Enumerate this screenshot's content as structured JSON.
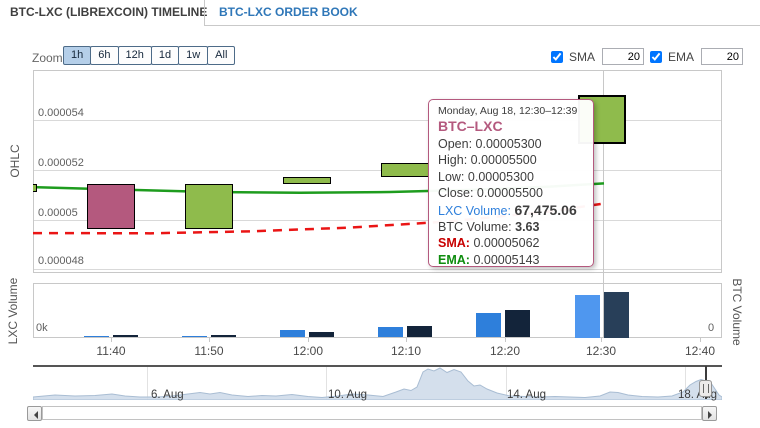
{
  "tabs": [
    {
      "label": "BTC-LXC (LIBREXCOIN) TIMELINE",
      "active": true
    },
    {
      "label": "BTC-LXC ORDER BOOK",
      "active": false
    }
  ],
  "toolbar": {
    "zoom_label": "Zoom",
    "zoom_buttons": [
      "1h",
      "6h",
      "12h",
      "1d",
      "1w",
      "All"
    ],
    "selected_zoom": "1h",
    "sma_label": "SMA",
    "sma_value": "20",
    "sma_checked": true,
    "ema_label": "EMA",
    "ema_value": "20",
    "ema_checked": true
  },
  "ohlc_pane": {
    "axis_title": "OHLC",
    "y_ticks": [
      "0.000054",
      "0.000052",
      "0.00005",
      "0.000048"
    ]
  },
  "volume_pane": {
    "left_axis_title": "LXC Volume",
    "right_axis_title": "BTC Volume",
    "left_zero_label": "0k",
    "right_zero_label": "0"
  },
  "x_axis_labels": [
    "11:40",
    "11:50",
    "12:00",
    "12:10",
    "12:20",
    "12:30",
    "12:40"
  ],
  "tooltip": {
    "date": "Monday, Aug 18, 12:30–12:39",
    "series_name": "BTC–LXC",
    "rows": [
      {
        "label": "Open:",
        "value": "0.00005300"
      },
      {
        "label": "High:",
        "value": "0.00005500"
      },
      {
        "label": "Low:",
        "value": "0.00005300"
      },
      {
        "label": "Close:",
        "value": "0.00005500"
      },
      {
        "label": "LXC Volume:",
        "value": "67,475.06",
        "label_color": "#2e7fdb",
        "value_bold": true,
        "value_size": "14px"
      },
      {
        "label": "BTC Volume:",
        "value": "3.63",
        "value_bold": true
      },
      {
        "label": "SMA:",
        "value": "0.00005062",
        "label_color": "#c80000",
        "label_bold": true
      },
      {
        "label": "EMA:",
        "value": "0.00005143",
        "label_color": "#0e8c0e",
        "label_bold": true
      }
    ]
  },
  "navigator": {
    "date_labels": [
      "6. Aug",
      "10. Aug",
      "14. Aug",
      "18. Aug"
    ]
  },
  "colors": {
    "up_candle": "#8fbb4c",
    "down_candle": "#b4597e",
    "ema_line": "#1e9c1e",
    "sma_line": "#ea1515",
    "lxc_bar": "#2e7fdb",
    "btc_bar": "#13243a",
    "lxc_bar_hover": "#4f97ef",
    "btc_bar_hover": "#283f59",
    "series_name": "#b4597e",
    "navigator_fill": "#ccd9e9",
    "navigator_line": "#a9bdd3"
  },
  "chart_data": {
    "type": "candlestick+volume",
    "title": "BTC-LXC (LibrexCoin) timeline",
    "x_categories": [
      "11:40",
      "11:50",
      "12:00",
      "12:10",
      "12:20",
      "12:30",
      "12:40"
    ],
    "y_axis": {
      "ticks": [
        5.4e-05,
        5.2e-05,
        5e-05,
        4.8e-05
      ],
      "label": "OHLC"
    },
    "candles": [
      {
        "time": "11:30",
        "open": 5.11e-05,
        "close": 5.14e-05,
        "clipped_left": true
      },
      {
        "time": "11:40",
        "open": 5.14e-05,
        "close": 4.96e-05
      },
      {
        "time": "11:50",
        "open": 4.96e-05,
        "close": 5.14e-05
      },
      {
        "time": "12:00",
        "open": 5.14e-05,
        "close": 5.17e-05
      },
      {
        "time": "12:10",
        "open": 5.17e-05,
        "close": 5.225e-05
      },
      {
        "time": "12:20",
        "hidden_behind_tooltip": true
      },
      {
        "time": "12:30",
        "open": 5.3e-05,
        "high": 5.5e-05,
        "low": 5.3e-05,
        "close": 5.5e-05,
        "hovered": true
      }
    ],
    "volume": {
      "lxc": [
        3100,
        3100,
        11000,
        15700,
        39200,
        67475.06
      ],
      "btc": [
        0.16,
        0.16,
        0.42,
        0.87,
        2.2,
        3.63
      ],
      "hover_index": 5
    },
    "sma_points": [
      [
        33,
        4.943e-05
      ],
      [
        150,
        4.942e-05
      ],
      [
        250,
        4.95e-05
      ],
      [
        350,
        4.965e-05
      ],
      [
        450,
        4.99e-05
      ],
      [
        550,
        5.03e-05
      ],
      [
        604,
        5.062e-05
      ]
    ],
    "ema_points": [
      [
        33,
        5.128e-05
      ],
      [
        120,
        5.118e-05
      ],
      [
        210,
        5.108e-05
      ],
      [
        300,
        5.105e-05
      ],
      [
        390,
        5.108e-05
      ],
      [
        480,
        5.118e-05
      ],
      [
        550,
        5.13e-05
      ],
      [
        604,
        5.143e-05
      ]
    ],
    "navigator_profile": [
      [
        33,
        397
      ],
      [
        55,
        395
      ],
      [
        75,
        396
      ],
      [
        95,
        395.5
      ],
      [
        112,
        394
      ],
      [
        125,
        396
      ],
      [
        140,
        397
      ],
      [
        158,
        397
      ],
      [
        172,
        396
      ],
      [
        188,
        394
      ],
      [
        200,
        392.5
      ],
      [
        210,
        394
      ],
      [
        220,
        392.5
      ],
      [
        232,
        395
      ],
      [
        248,
        396.5
      ],
      [
        262,
        395.5
      ],
      [
        276,
        396
      ],
      [
        292,
        394.5
      ],
      [
        308,
        396.5
      ],
      [
        322,
        397.5
      ],
      [
        338,
        396
      ],
      [
        352,
        394
      ],
      [
        368,
        395
      ],
      [
        383,
        396.5
      ],
      [
        396,
        392
      ],
      [
        404,
        389
      ],
      [
        411,
        390.5
      ],
      [
        417,
        387
      ],
      [
        423,
        372
      ],
      [
        428,
        369
      ],
      [
        434,
        371
      ],
      [
        440,
        368
      ],
      [
        447,
        372.5
      ],
      [
        454,
        369.5
      ],
      [
        461,
        372
      ],
      [
        468,
        381
      ],
      [
        474,
        386
      ],
      [
        480,
        385
      ],
      [
        487,
        389
      ],
      [
        497,
        393
      ],
      [
        510,
        396
      ],
      [
        525,
        396.5
      ],
      [
        540,
        397
      ],
      [
        555,
        396.5
      ],
      [
        570,
        397
      ],
      [
        585,
        397.5
      ],
      [
        600,
        396
      ],
      [
        610,
        392
      ],
      [
        618,
        392.5
      ],
      [
        628,
        395
      ],
      [
        642,
        396.5
      ],
      [
        658,
        397
      ],
      [
        672,
        396
      ],
      [
        683,
        392
      ],
      [
        690,
        385
      ],
      [
        696,
        381.5
      ],
      [
        701,
        379.5
      ],
      [
        706,
        381
      ],
      [
        711,
        383
      ],
      [
        715,
        389
      ],
      [
        719,
        395
      ],
      [
        722,
        397
      ]
    ]
  }
}
